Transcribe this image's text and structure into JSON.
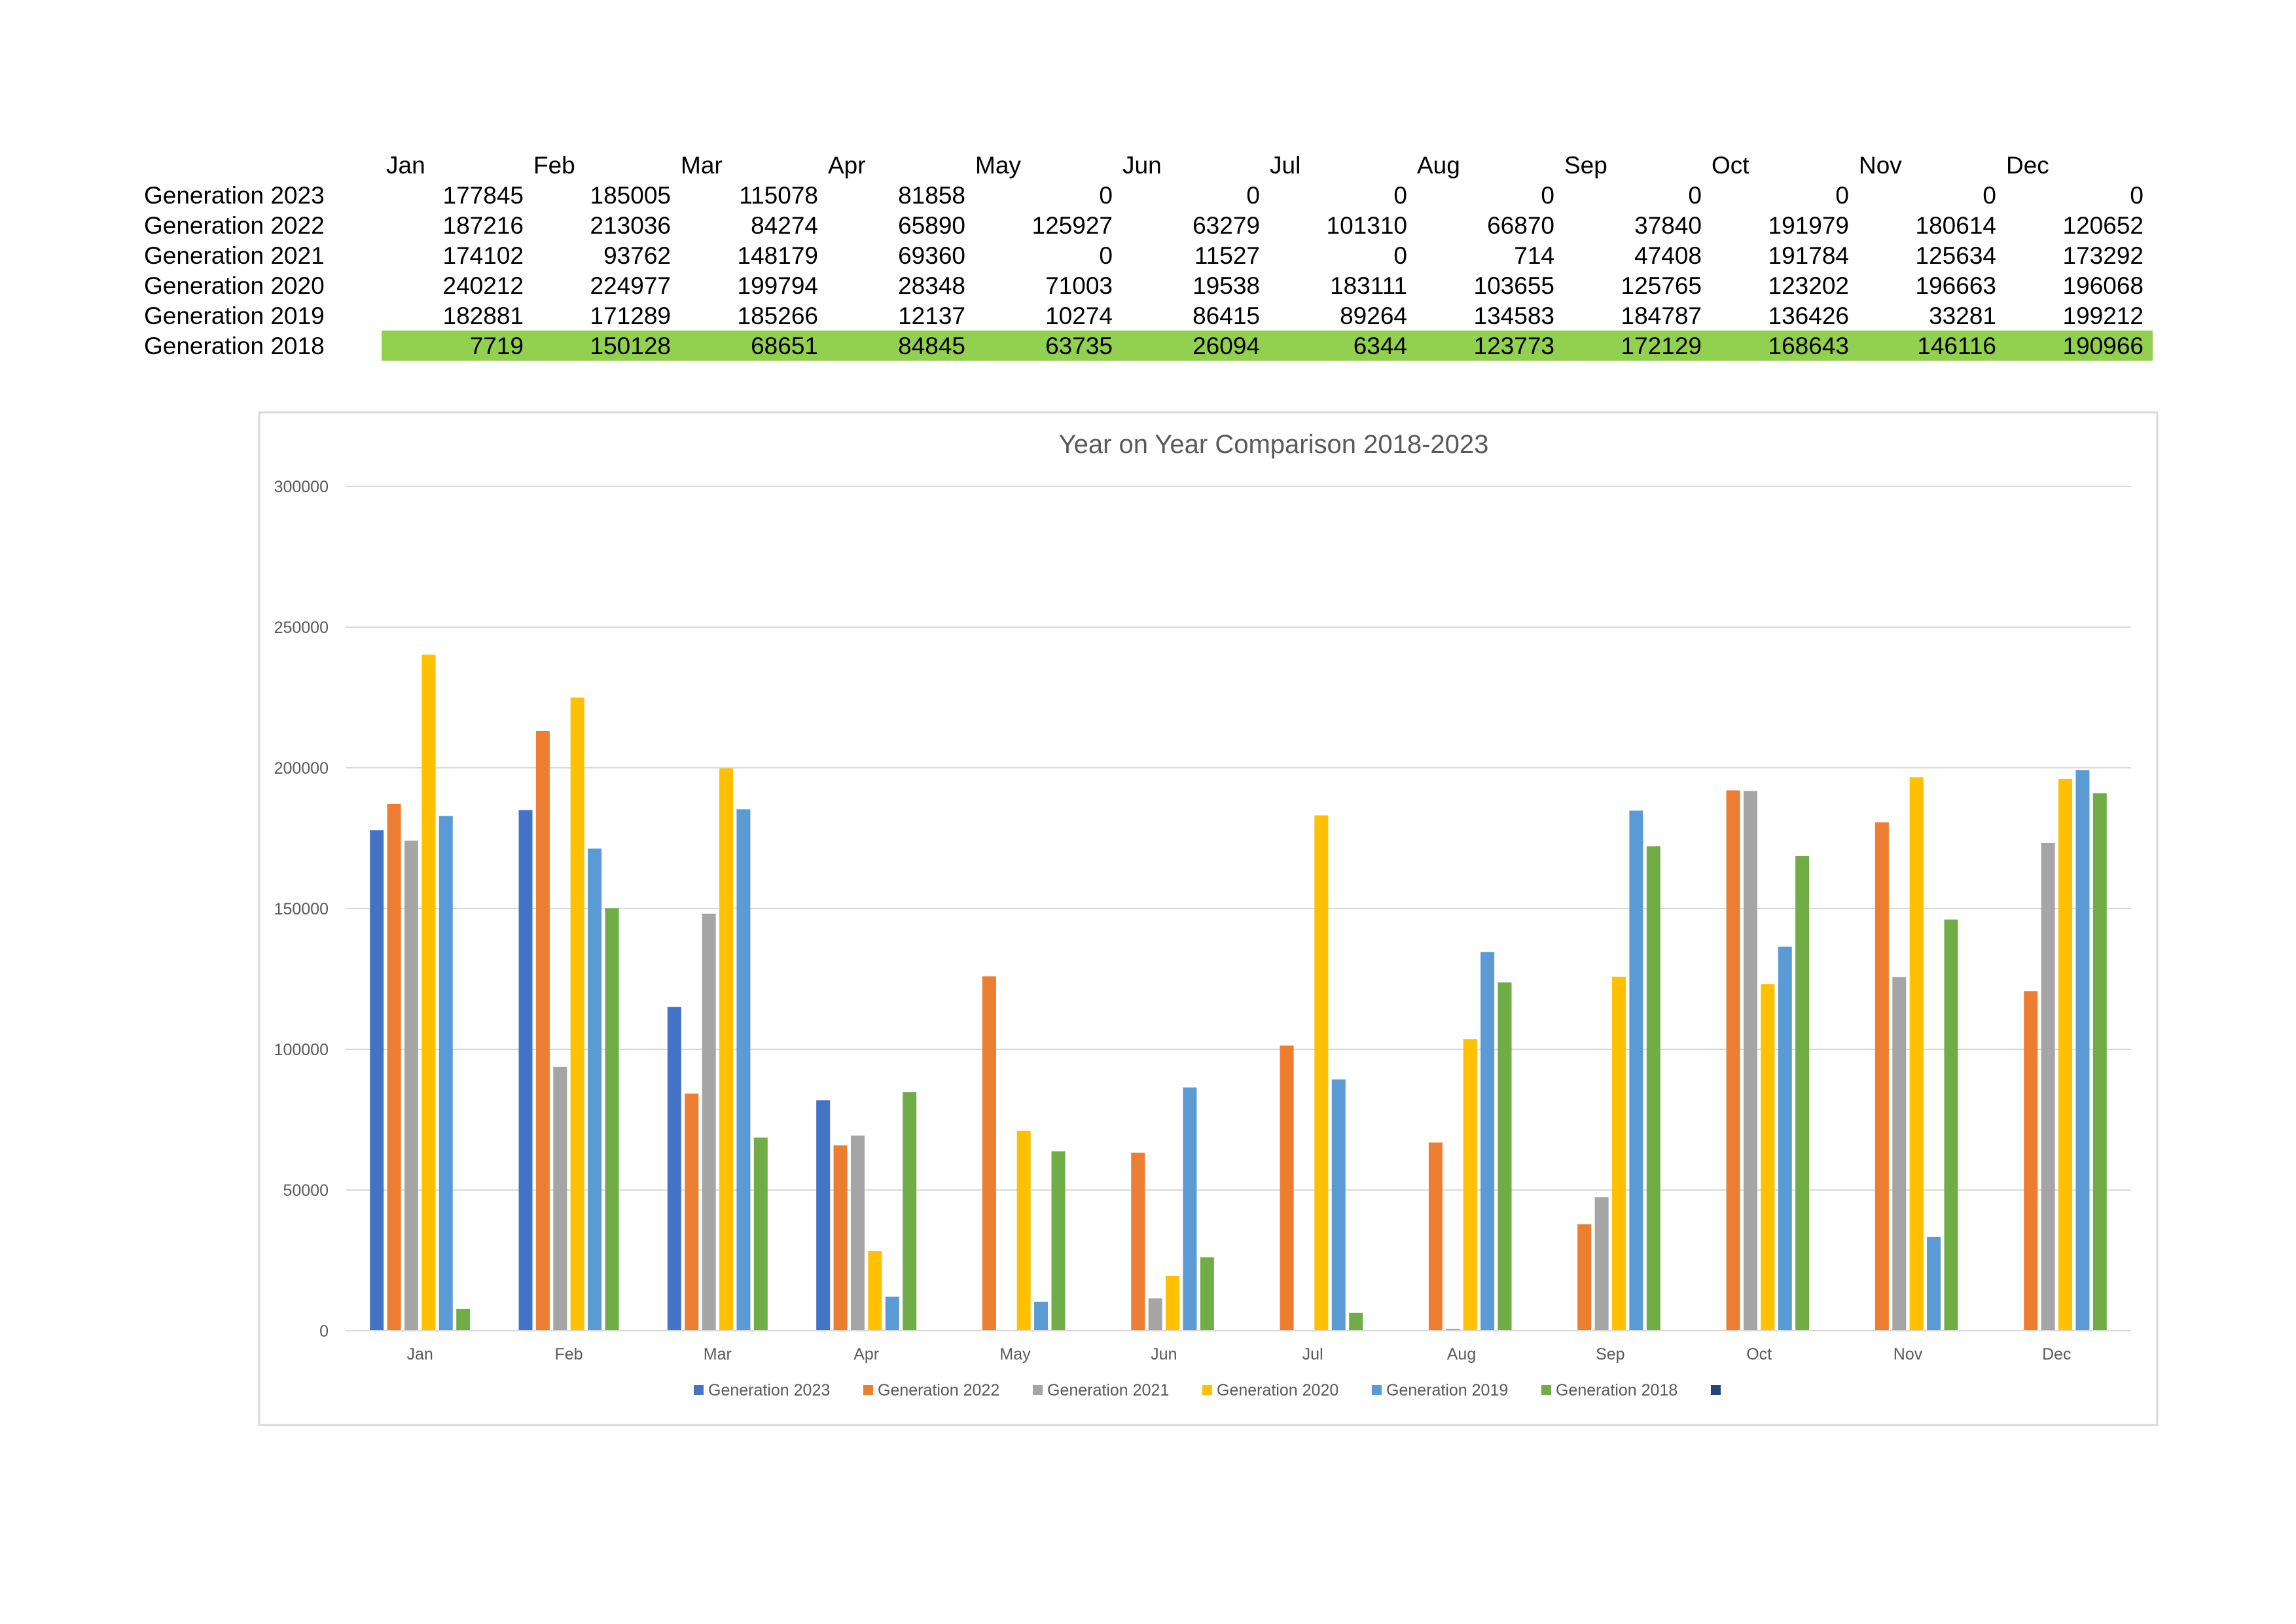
{
  "table": {
    "header_months": [
      "Jan",
      "Feb",
      "Mar",
      "Apr",
      "May",
      "Jun",
      "Jul",
      "Aug",
      "Sep",
      "Oct",
      "Nov",
      "Dec"
    ],
    "rows": [
      {
        "label": "Generation 2023",
        "values": [
          177845,
          185005,
          115078,
          81858,
          0,
          0,
          0,
          0,
          0,
          0,
          0,
          0
        ],
        "highlight": false
      },
      {
        "label": "Generation 2022",
        "values": [
          187216,
          213036,
          84274,
          65890,
          125927,
          63279,
          101310,
          66870,
          37840,
          191979,
          180614,
          120652
        ],
        "highlight": false
      },
      {
        "label": "Generation 2021",
        "values": [
          174102,
          93762,
          148179,
          69360,
          0,
          11527,
          0,
          714,
          47408,
          191784,
          125634,
          173292
        ],
        "highlight": false
      },
      {
        "label": "Generation 2020",
        "values": [
          240212,
          224977,
          199794,
          28348,
          71003,
          19538,
          183111,
          103655,
          125765,
          123202,
          196663,
          196068
        ],
        "highlight": false
      },
      {
        "label": "Generation 2019",
        "values": [
          182881,
          171289,
          185266,
          12137,
          10274,
          86415,
          89264,
          134583,
          184787,
          136426,
          33281,
          199212
        ],
        "highlight": false
      },
      {
        "label": "Generation 2018",
        "values": [
          7719,
          150128,
          68651,
          84845,
          63735,
          26094,
          6344,
          123773,
          172129,
          168643,
          146116,
          190966
        ],
        "highlight": true
      }
    ],
    "highlight_color": "#92D050"
  },
  "chart_data": {
    "type": "bar",
    "title": "Year on Year Comparison 2018-2023",
    "xlabel": "",
    "ylabel": "",
    "categories": [
      "Jan",
      "Feb",
      "Mar",
      "Apr",
      "May",
      "Jun",
      "Jul",
      "Aug",
      "Sep",
      "Oct",
      "Nov",
      "Dec"
    ],
    "ylim": [
      0,
      300000
    ],
    "yticks": [
      0,
      50000,
      100000,
      150000,
      200000,
      250000,
      300000
    ],
    "ytick_labels": [
      "0",
      "50000",
      "100000",
      "150000",
      "200000",
      "250000",
      "300000"
    ],
    "grid": true,
    "legend_position": "bottom",
    "series": [
      {
        "name": "Generation 2023",
        "color": "#4472C4",
        "values": [
          177845,
          185005,
          115078,
          81858,
          0,
          0,
          0,
          0,
          0,
          0,
          0,
          0
        ]
      },
      {
        "name": "Generation 2022",
        "color": "#ED7D31",
        "values": [
          187216,
          213036,
          84274,
          65890,
          125927,
          63279,
          101310,
          66870,
          37840,
          191979,
          180614,
          120652
        ]
      },
      {
        "name": "Generation 2021",
        "color": "#A5A5A5",
        "values": [
          174102,
          93762,
          148179,
          69360,
          0,
          11527,
          0,
          714,
          47408,
          191784,
          125634,
          173292
        ]
      },
      {
        "name": "Generation 2020",
        "color": "#FFC000",
        "values": [
          240212,
          224977,
          199794,
          28348,
          71003,
          19538,
          183111,
          103655,
          125765,
          123202,
          196663,
          196068
        ]
      },
      {
        "name": "Generation 2019",
        "color": "#5B9BD5",
        "values": [
          182881,
          171289,
          185266,
          12137,
          10274,
          86415,
          89264,
          134583,
          184787,
          136426,
          33281,
          199212
        ]
      },
      {
        "name": "Generation 2018",
        "color": "#70AD47",
        "values": [
          7719,
          150128,
          68651,
          84845,
          63735,
          26094,
          6344,
          123773,
          172129,
          168643,
          146116,
          190966
        ]
      }
    ],
    "extra_legend_swatch_color": "#264478"
  }
}
